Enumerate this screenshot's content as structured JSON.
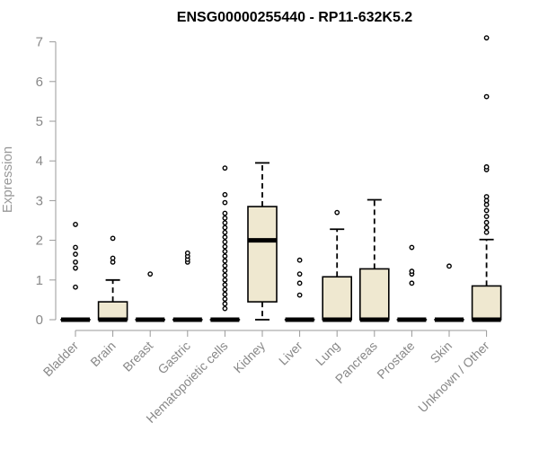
{
  "chart_data": {
    "type": "box",
    "title": "ENSG00000255440 - RP11-632K5.2",
    "xlabel": "",
    "ylabel": "Expression",
    "ylim": [
      0,
      7.1
    ],
    "yticks": [
      0,
      1,
      2,
      3,
      4,
      5,
      6,
      7
    ],
    "box_fill": "#efe8d0",
    "outline_color": "#000000",
    "axis_color": "#999999",
    "categories": [
      "Bladder",
      "Brain",
      "Breast",
      "Gastric",
      "Hematopoietic cells",
      "Kidney",
      "Liver",
      "Lung",
      "Pancreas",
      "Prostate",
      "Skin",
      "Unknown / Other"
    ],
    "boxes": [
      {
        "name": "Bladder",
        "q1": 0,
        "median": 0,
        "q3": 0,
        "whisker_low": 0,
        "whisker_high": 0,
        "outliers": [
          0.82,
          1.3,
          1.45,
          1.65,
          1.82,
          2.4
        ]
      },
      {
        "name": "Brain",
        "q1": 0,
        "median": 0,
        "q3": 0.45,
        "whisker_low": 0,
        "whisker_high": 1.0,
        "outliers": [
          1.45,
          1.55,
          2.05
        ]
      },
      {
        "name": "Breast",
        "q1": 0,
        "median": 0,
        "q3": 0,
        "whisker_low": 0,
        "whisker_high": 0,
        "outliers": [
          1.15
        ]
      },
      {
        "name": "Gastric",
        "q1": 0,
        "median": 0,
        "q3": 0,
        "whisker_low": 0,
        "whisker_high": 0,
        "outliers": [
          1.45,
          1.52,
          1.6,
          1.68
        ]
      },
      {
        "name": "Hematopoietic cells",
        "q1": 0,
        "median": 0,
        "q3": 0,
        "whisker_low": 0,
        "whisker_high": 0,
        "outliers": [
          0.28,
          0.4,
          0.52,
          0.64,
          0.76,
          0.88,
          1.0,
          1.12,
          1.24,
          1.36,
          1.48,
          1.6,
          1.72,
          1.84,
          1.96,
          2.08,
          2.2,
          2.32,
          2.44,
          2.56,
          2.68,
          2.95,
          3.15,
          3.82
        ]
      },
      {
        "name": "Kidney",
        "q1": 0.45,
        "median": 2.0,
        "q3": 2.85,
        "whisker_low": 0,
        "whisker_high": 3.95,
        "outliers": []
      },
      {
        "name": "Liver",
        "q1": 0,
        "median": 0,
        "q3": 0,
        "whisker_low": 0,
        "whisker_high": 0,
        "outliers": [
          0.62,
          0.92,
          1.15,
          1.5
        ]
      },
      {
        "name": "Lung",
        "q1": 0,
        "median": 0,
        "q3": 1.08,
        "whisker_low": 0,
        "whisker_high": 2.28,
        "outliers": [
          2.7
        ]
      },
      {
        "name": "Pancreas",
        "q1": 0,
        "median": 0,
        "q3": 1.28,
        "whisker_low": 0,
        "whisker_high": 3.02,
        "outliers": []
      },
      {
        "name": "Prostate",
        "q1": 0,
        "median": 0,
        "q3": 0,
        "whisker_low": 0,
        "whisker_high": 0,
        "outliers": [
          0.92,
          1.15,
          1.22,
          1.82
        ]
      },
      {
        "name": "Skin",
        "q1": 0,
        "median": 0,
        "q3": 0,
        "whisker_low": 0,
        "whisker_high": 0,
        "outliers": [
          1.35
        ]
      },
      {
        "name": "Unknown / Other",
        "q1": 0,
        "median": 0,
        "q3": 0.85,
        "whisker_low": 0,
        "whisker_high": 2.02,
        "outliers": [
          2.2,
          2.32,
          2.45,
          2.6,
          2.75,
          2.9,
          3.0,
          3.1,
          3.78,
          3.85,
          5.62,
          7.1
        ]
      }
    ]
  }
}
